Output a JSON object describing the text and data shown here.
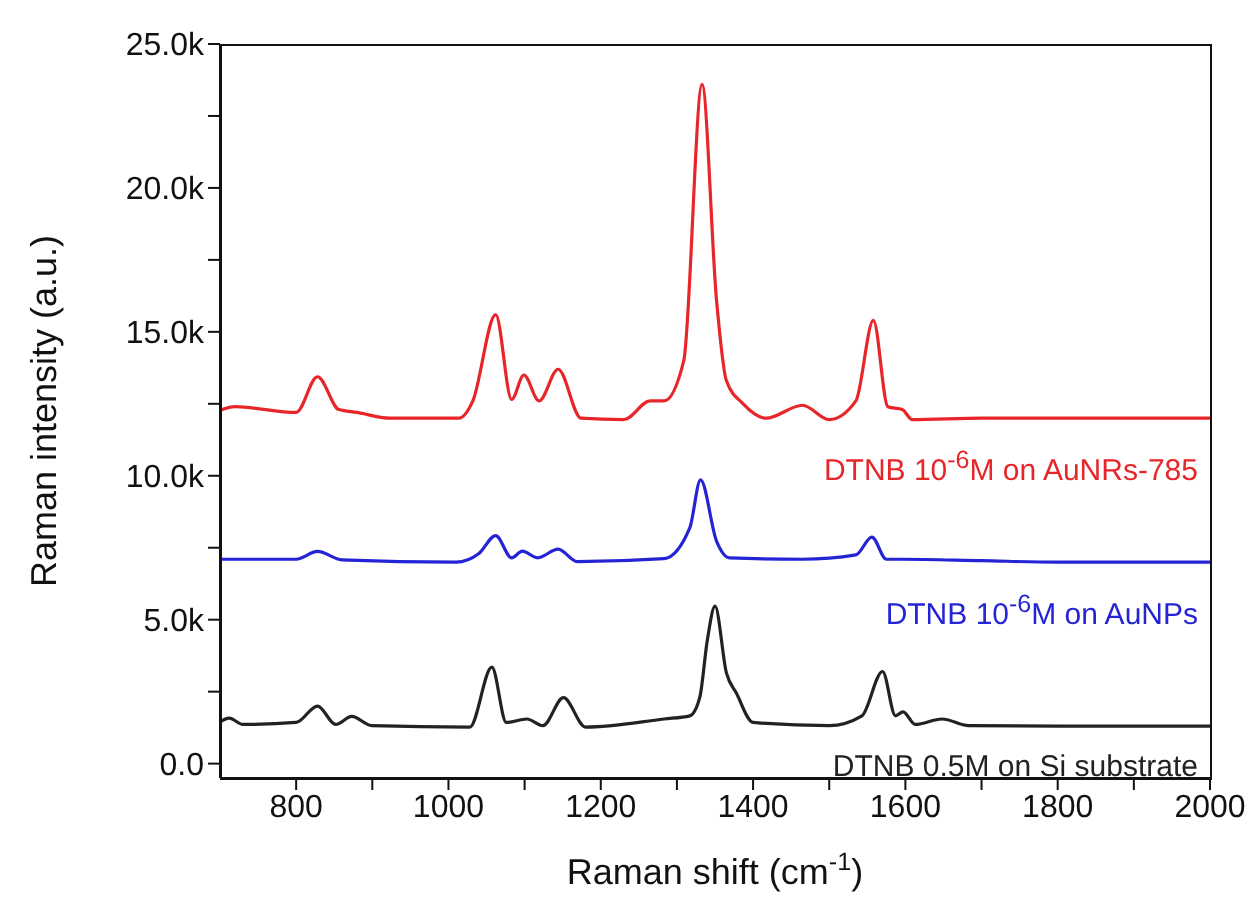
{
  "chart_data": {
    "type": "line",
    "xlabel": "Raman shift (cm$^{-1}$)",
    "ylabel": "Raman intensity (a.u.)",
    "xlim": [
      700,
      2000
    ],
    "ylim": [
      -500,
      25000
    ],
    "xticks": [
      800,
      1000,
      1200,
      1400,
      1600,
      1800,
      2000,
      {
        "value": 900,
        "label": null
      },
      {
        "value": 1100,
        "label": null
      },
      {
        "value": 1300,
        "label": null
      },
      {
        "value": 1500,
        "label": null
      },
      {
        "value": 1700,
        "label": null
      },
      {
        "value": 1900,
        "label": null
      }
    ],
    "yticks": [
      {
        "value": 0,
        "label": "0.0"
      },
      {
        "value": 5000,
        "label": "5.0k"
      },
      {
        "value": 10000,
        "label": "10.0k"
      },
      {
        "value": 15000,
        "label": "15.0k"
      },
      {
        "value": 20000,
        "label": "20.0k"
      },
      {
        "value": 25000,
        "label": "25.0k"
      },
      {
        "value": 2500,
        "label": null
      },
      {
        "value": 7500,
        "label": null
      },
      {
        "value": 12500,
        "label": null
      },
      {
        "value": 17500,
        "label": null
      },
      {
        "value": 22500,
        "label": null
      }
    ],
    "legend": false,
    "marker": "none",
    "line_style": "solid",
    "series": [
      {
        "name": "DTNB 10$^{-6}$M on AuNRs-785",
        "color": "#e8262a",
        "x": [
          700,
          720,
          800,
          828,
          856,
          880,
          923,
          1014,
          1032,
          1062,
          1083,
          1099,
          1119,
          1144,
          1174,
          1230,
          1265,
          1283,
          1309,
          1333,
          1352,
          1365,
          1387,
          1417,
          1465,
          1500,
          1535,
          1558,
          1577,
          1596,
          1609,
          1700,
          1800,
          1900,
          2000
        ],
        "values": [
          12280,
          12400,
          12200,
          13440,
          12300,
          12200,
          12000,
          12000,
          12600,
          15600,
          12650,
          13500,
          12600,
          13700,
          12000,
          11950,
          12600,
          12600,
          14000,
          23600,
          16100,
          13300,
          12500,
          12000,
          12450,
          11950,
          12600,
          15400,
          12400,
          12300,
          11950,
          12000,
          12000,
          12000,
          12000
        ]
      },
      {
        "name": "DTNB 10$^{-6}$M on AuNPs",
        "color": "#2424d6",
        "x": [
          700,
          800,
          828,
          860,
          1010,
          1040,
          1062,
          1083,
          1097,
          1117,
          1144,
          1169,
          1283,
          1317,
          1331,
          1352,
          1369,
          1465,
          1535,
          1556,
          1575,
          1596,
          1700,
          1800,
          1900,
          2000
        ],
        "values": [
          7100,
          7100,
          7370,
          7080,
          7000,
          7300,
          7920,
          7150,
          7380,
          7150,
          7450,
          7020,
          7120,
          8200,
          9860,
          7730,
          7150,
          7100,
          7250,
          7870,
          7100,
          7100,
          7050,
          7000,
          7000,
          7000
        ]
      },
      {
        "name": "DTNB 0.5M on Si substrate",
        "color": "#222222",
        "x": [
          700,
          712,
          730,
          800,
          828,
          852,
          873,
          899,
          1028,
          1057,
          1076,
          1103,
          1124,
          1151,
          1180,
          1283,
          1317,
          1330,
          1340,
          1350,
          1365,
          1378,
          1400,
          1500,
          1543,
          1570,
          1587,
          1597,
          1613,
          1648,
          1683,
          1800,
          1900,
          2000
        ],
        "values": [
          1450,
          1580,
          1360,
          1430,
          2000,
          1360,
          1640,
          1320,
          1270,
          3350,
          1430,
          1550,
          1320,
          2290,
          1270,
          1550,
          1660,
          2300,
          4300,
          5470,
          3150,
          2450,
          1430,
          1320,
          1660,
          3200,
          1660,
          1800,
          1360,
          1550,
          1320,
          1300,
          1300,
          1300
        ]
      }
    ]
  }
}
